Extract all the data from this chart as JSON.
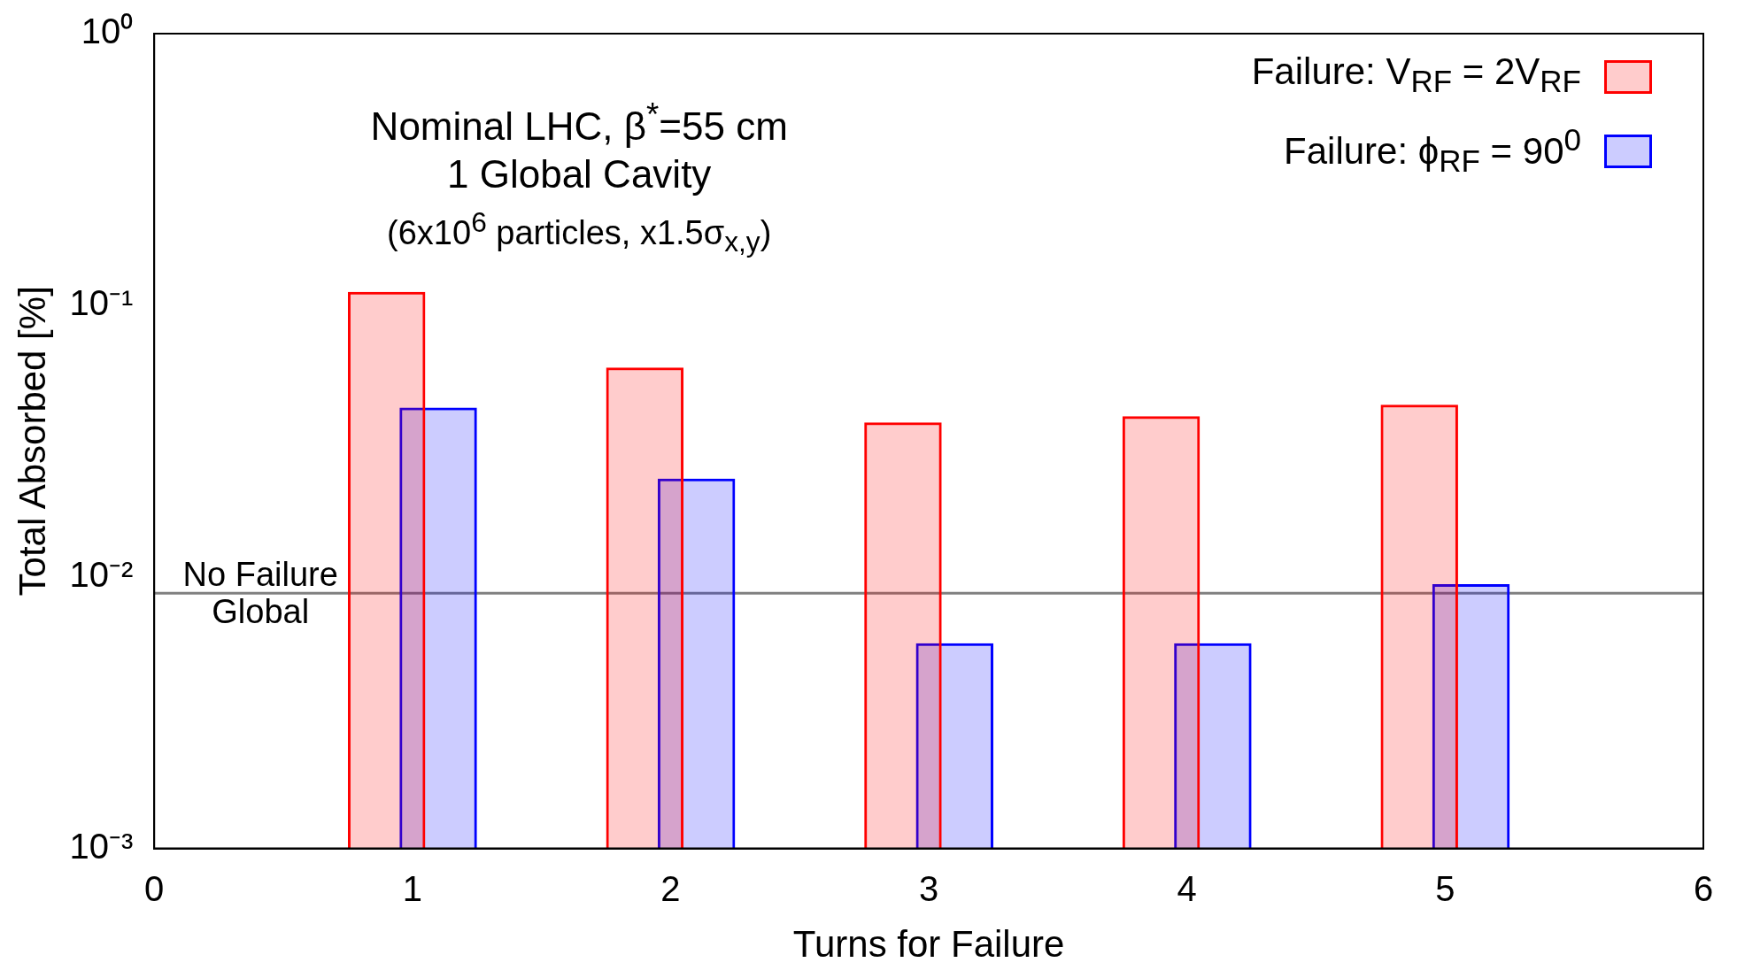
{
  "chart_data": {
    "type": "bar",
    "xlabel": "Turns for Failure",
    "ylabel": "Total Absorbed [%]",
    "annotations": [
      "Nominal LHC, β$^{*}$=55 cm",
      "1 Global Cavity",
      "(6x10$^{6}$ particles, x1.5σ$_{x,y}$)"
    ],
    "x": [
      1,
      2,
      3,
      4,
      5
    ],
    "series": [
      {
        "name": "Failure: V$_{RF}$ = 2V$_{RF}$",
        "color": "#ff0000",
        "values": [
          0.112,
          0.059,
          0.037,
          0.039,
          0.043
        ]
      },
      {
        "name": "Failure: ϕ$_{RF}$ = 90$^{0}$",
        "color": "#0000ff",
        "values": [
          0.042,
          0.023,
          0.0057,
          0.0057,
          0.0094
        ]
      }
    ],
    "log": "y",
    "xlim": [
      0,
      6
    ],
    "xticks": [
      0,
      1,
      2,
      3,
      4,
      5,
      6
    ],
    "ylim": [
      0.001,
      1
    ],
    "yticks": [
      {
        "value": 0.001,
        "label": "10⁻³"
      },
      {
        "value": 0.01,
        "label": "10⁻²"
      },
      {
        "value": 0.1,
        "label": "10⁻¹"
      },
      {
        "value": 1,
        "label": "10⁰"
      }
    ],
    "ref_lines": [
      {
        "axis": "y",
        "value": 0.0087,
        "label": "No Failure Global",
        "color": "#808080"
      }
    ],
    "legend": "top right",
    "grid": false
  }
}
